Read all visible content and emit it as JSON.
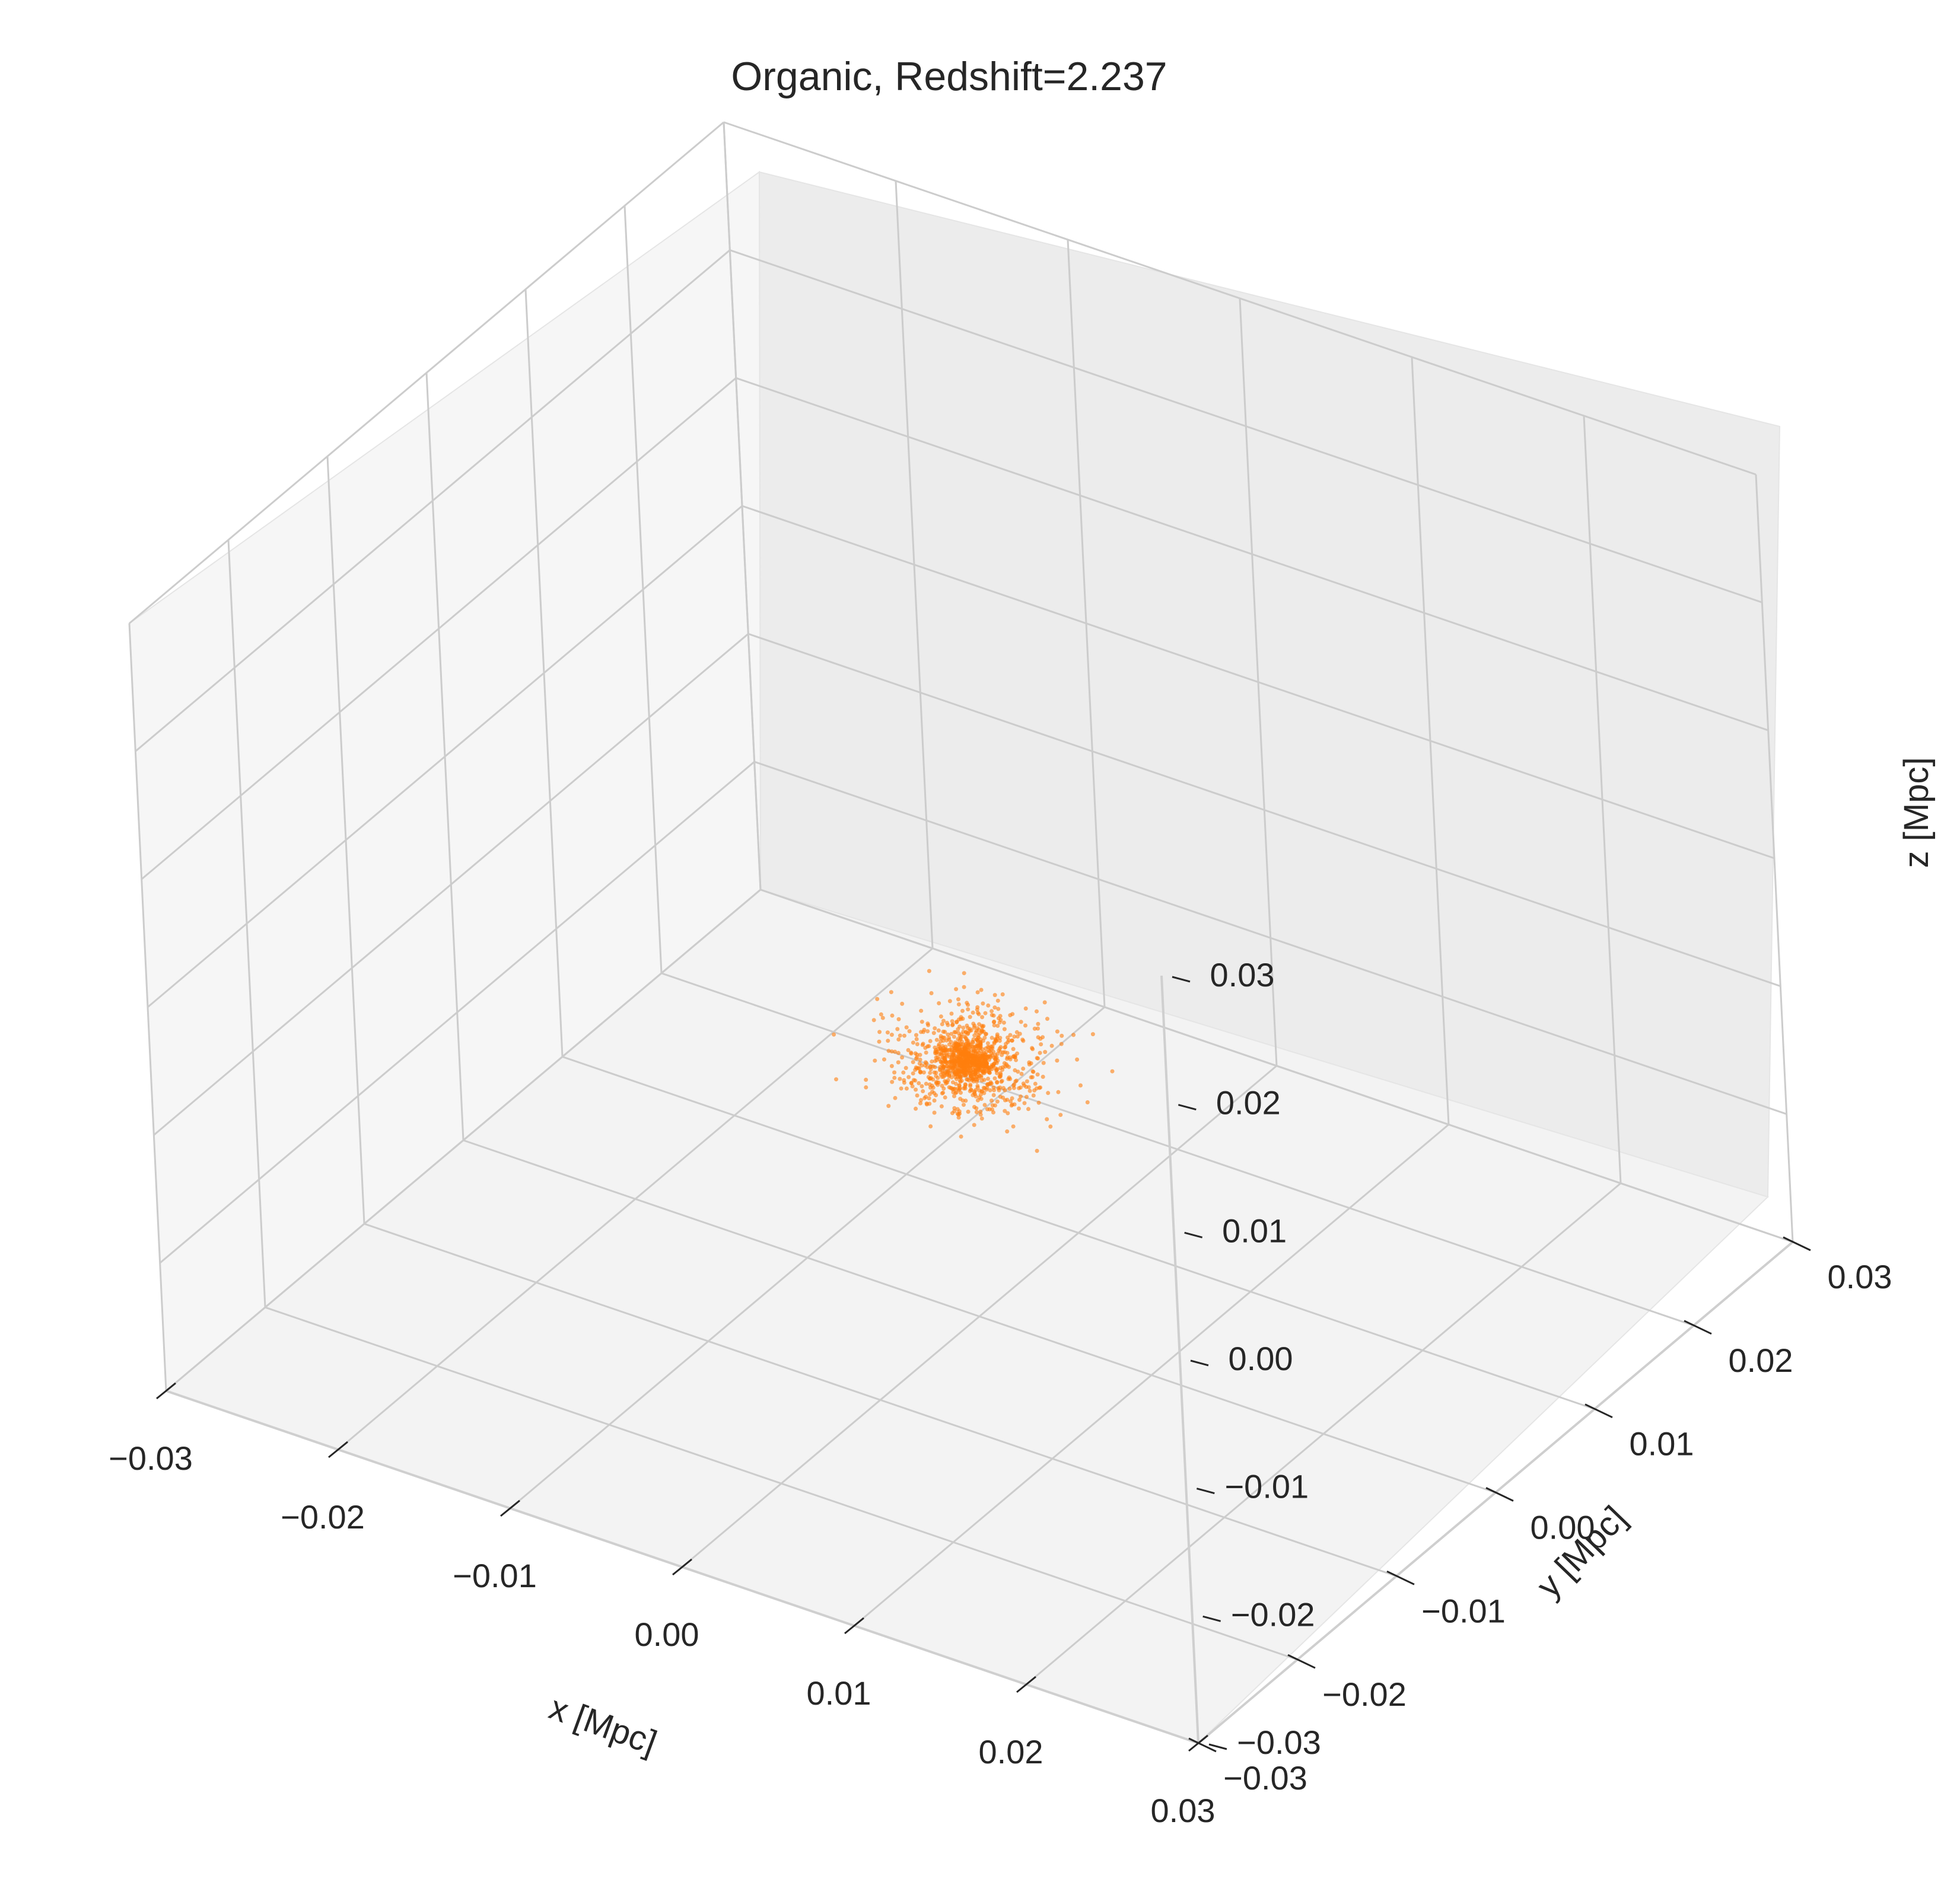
{
  "chart_data": {
    "type": "scatter",
    "projection": "3d",
    "title": "Organic, Redshift=2.237",
    "xlabel": "x [Mpc]",
    "ylabel": "y [Mpc]",
    "zlabel": "z [Mpc]",
    "xlim": [
      -0.03,
      0.03
    ],
    "ylim": [
      -0.03,
      0.03
    ],
    "zlim": [
      -0.03,
      0.03
    ],
    "xticks": [
      -0.03,
      -0.02,
      -0.01,
      0.0,
      0.01,
      0.02,
      0.03
    ],
    "yticks": [
      -0.03,
      -0.02,
      -0.01,
      0.0,
      0.01,
      0.02,
      0.03
    ],
    "zticks": [
      -0.03,
      -0.02,
      -0.01,
      0.0,
      0.01,
      0.02,
      0.03
    ],
    "xtick_labels": [
      "−0.03",
      "−0.02",
      "−0.01",
      "0.00",
      "0.01",
      "0.02",
      "0.03"
    ],
    "ytick_labels": [
      "−0.03",
      "−0.02",
      "−0.01",
      "0.00",
      "0.01",
      "0.02",
      "0.03"
    ],
    "ztick_labels": [
      "−0.03",
      "−0.02",
      "−0.01",
      "0.00",
      "0.01",
      "0.02",
      "0.03"
    ],
    "grid": true,
    "series": [
      {
        "color": "#ff7f0e",
        "marker_alpha": 0.6,
        "point_count": 1200,
        "center": [
          0.0,
          0.0,
          -0.01
        ],
        "spread": [
          0.002,
          0.002,
          0.0015
        ]
      }
    ]
  }
}
